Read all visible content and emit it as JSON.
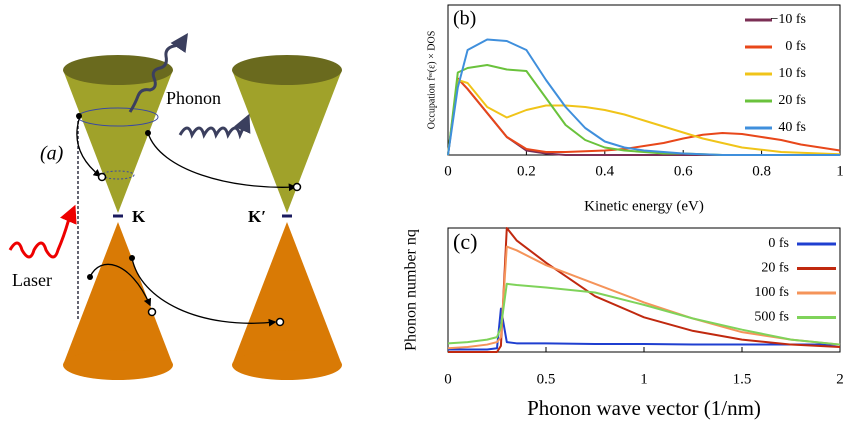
{
  "diagram": {
    "panel_label": "(a)",
    "valley_left": "K",
    "valley_right": "K′",
    "phonon": "Phonon",
    "laser": "Laser"
  },
  "chart_data": [
    {
      "type": "line",
      "panel_label": "(b)",
      "xlabel": "Kinetic energy (eV)",
      "ylabel": "Occupation fᵉᵉ(ε) × DOS",
      "x": [
        0,
        0.025,
        0.05,
        0.1,
        0.15,
        0.2,
        0.25,
        0.3,
        0.35,
        0.4,
        0.45,
        0.5,
        0.55,
        0.6,
        0.65,
        0.7,
        0.75,
        0.8,
        0.85,
        0.9,
        0.95,
        1
      ],
      "xlim": [
        0,
        1
      ],
      "xticks": [
        0,
        0.2,
        0.4,
        0.6,
        0.8,
        1
      ],
      "ylim": [
        0,
        1
      ],
      "series": [
        {
          "name": "−10 fs",
          "color": "#7b2f55",
          "values": [
            0,
            0.51,
            0.44,
            0.28,
            0.12,
            0.03,
            0.01,
            0,
            0,
            0,
            0,
            0,
            0,
            0,
            0,
            0,
            0,
            0,
            0,
            0,
            0,
            0
          ]
        },
        {
          "name": "0 fs",
          "color": "#e8471a",
          "values": [
            0,
            0.51,
            0.44,
            0.28,
            0.12,
            0.04,
            0.02,
            0.02,
            0.025,
            0.03,
            0.04,
            0.06,
            0.08,
            0.11,
            0.135,
            0.147,
            0.14,
            0.12,
            0.1,
            0.07,
            0.05,
            0.03
          ]
        },
        {
          "name": "10 fs",
          "color": "#f0c419",
          "values": [
            0,
            0.5,
            0.48,
            0.32,
            0.25,
            0.3,
            0.33,
            0.33,
            0.32,
            0.3,
            0.27,
            0.23,
            0.19,
            0.15,
            0.11,
            0.08,
            0.05,
            0.035,
            0.02,
            0.015,
            0.01,
            0.005
          ]
        },
        {
          "name": "20 fs",
          "color": "#6ac23c",
          "values": [
            0,
            0.55,
            0.58,
            0.6,
            0.57,
            0.56,
            0.38,
            0.2,
            0.1,
            0.05,
            0.03,
            0.02,
            0.01,
            0.01,
            0.005,
            0,
            0,
            0,
            0,
            0,
            0,
            0
          ]
        },
        {
          "name": "40 fs",
          "color": "#3f8fdc",
          "values": [
            0,
            0.45,
            0.7,
            0.77,
            0.76,
            0.7,
            0.5,
            0.32,
            0.18,
            0.09,
            0.05,
            0.03,
            0.02,
            0.01,
            0.005,
            0,
            0,
            0,
            0,
            0,
            0,
            0
          ]
        }
      ]
    },
    {
      "type": "line",
      "panel_label": "(c)",
      "xlabel": "Phonon wave vector (1/nm)",
      "ylabel": "Phonon number nq",
      "x": [
        0,
        0.1,
        0.2,
        0.25,
        0.27,
        0.3,
        0.35,
        0.5,
        0.75,
        1,
        1.25,
        1.5,
        1.75,
        2
      ],
      "xlim": [
        0,
        2
      ],
      "xticks": [
        0,
        0.5,
        1,
        1.5,
        2
      ],
      "ylim": [
        0,
        1
      ],
      "series": [
        {
          "name": "0 fs",
          "color": "#1f3fd0",
          "values": [
            0.02,
            0.02,
            0.02,
            0.03,
            0.35,
            0.08,
            0.07,
            0.07,
            0.065,
            0.065,
            0.06,
            0.06,
            0.06,
            0.06
          ]
        },
        {
          "name": "20 fs",
          "color": "#c0290f",
          "values": [
            0,
            0,
            0,
            0,
            0.05,
            1,
            0.9,
            0.72,
            0.45,
            0.28,
            0.17,
            0.1,
            0.06,
            0.04
          ]
        },
        {
          "name": "100 fs",
          "color": "#f5945a",
          "values": [
            0.03,
            0.04,
            0.06,
            0.08,
            0.12,
            0.85,
            0.82,
            0.7,
            0.55,
            0.4,
            0.27,
            0.16,
            0.1,
            0.06
          ]
        },
        {
          "name": "500 fs",
          "color": "#7fd35a",
          "values": [
            0.07,
            0.08,
            0.1,
            0.12,
            0.2,
            0.55,
            0.54,
            0.52,
            0.48,
            0.38,
            0.27,
            0.18,
            0.1,
            0.06
          ]
        }
      ]
    }
  ]
}
